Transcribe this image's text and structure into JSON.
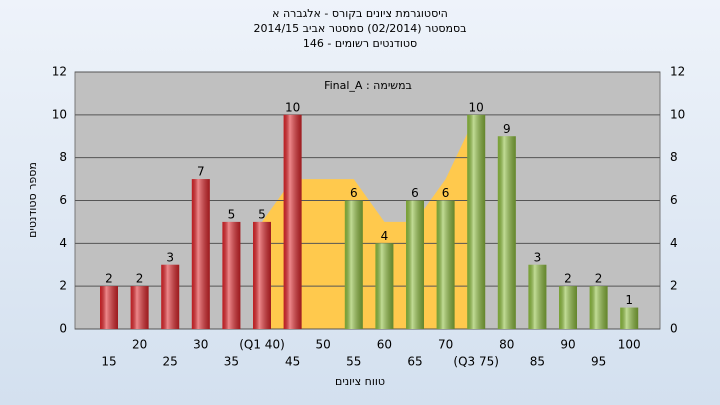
{
  "chart_data": {
    "type": "bar",
    "title": "היסטוגרמת ציונים בקורס - אלגברה א",
    "subtitle": "בסמסטר  (02/2014)  סמסטר אביב 2014/15",
    "subtitle2": "סטודנטים רשומים - 146",
    "annotation": "במשימה : Final_A",
    "x_label": "טווח ציונים",
    "y_label": "מספר סטודנטים",
    "categories": [
      "15",
      "20",
      "25",
      "30",
      "35",
      "(Q1 40)",
      "45",
      "50",
      "55",
      "60",
      "65",
      "70",
      "(Q3 75)",
      "80",
      "85",
      "90",
      "95",
      "100"
    ],
    "values": [
      2,
      2,
      3,
      7,
      5,
      5,
      10,
      null,
      6,
      4,
      6,
      6,
      10,
      9,
      3,
      2,
      2,
      1
    ],
    "colors": [
      "#e0262b",
      "#e0262b",
      "#e0262b",
      "#e0262b",
      "#e0262b",
      "#e0262b",
      "#e0262b",
      "#e0262b",
      "#8fbf3f",
      "#8fbf3f",
      "#8fbf3f",
      "#8fbf3f",
      "#8fbf3f",
      "#8fbf3f",
      "#8fbf3f",
      "#8fbf3f",
      "#8fbf3f",
      "#8fbf3f"
    ],
    "area": {
      "color": "#ffc94d",
      "values": [
        null,
        null,
        null,
        null,
        null,
        5,
        7,
        7,
        7,
        5,
        5,
        7,
        10,
        null,
        null,
        null,
        null,
        null
      ]
    },
    "ylim": [
      0,
      12
    ],
    "yticks": [
      0,
      2,
      4,
      6,
      8,
      10,
      12
    ],
    "grid": true
  }
}
